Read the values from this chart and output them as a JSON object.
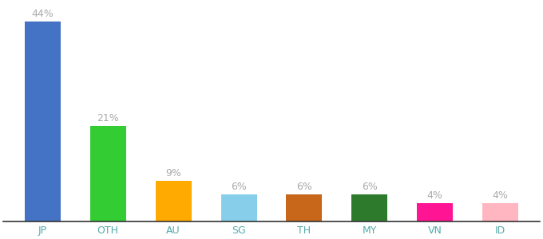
{
  "categories": [
    "JP",
    "OTH",
    "AU",
    "SG",
    "TH",
    "MY",
    "VN",
    "ID"
  ],
  "values": [
    44,
    21,
    9,
    6,
    6,
    6,
    4,
    4
  ],
  "bar_colors": [
    "#4472c4",
    "#33cc33",
    "#ffaa00",
    "#87ceeb",
    "#c8661a",
    "#2d7a2d",
    "#ff1493",
    "#ffb6c1"
  ],
  "label_color": "#aaaaaa",
  "tick_color": "#33cc33",
  "background_color": "#ffffff",
  "ylim": [
    0,
    48
  ],
  "bar_width": 0.55,
  "label_fontsize": 9,
  "tick_fontsize": 9
}
